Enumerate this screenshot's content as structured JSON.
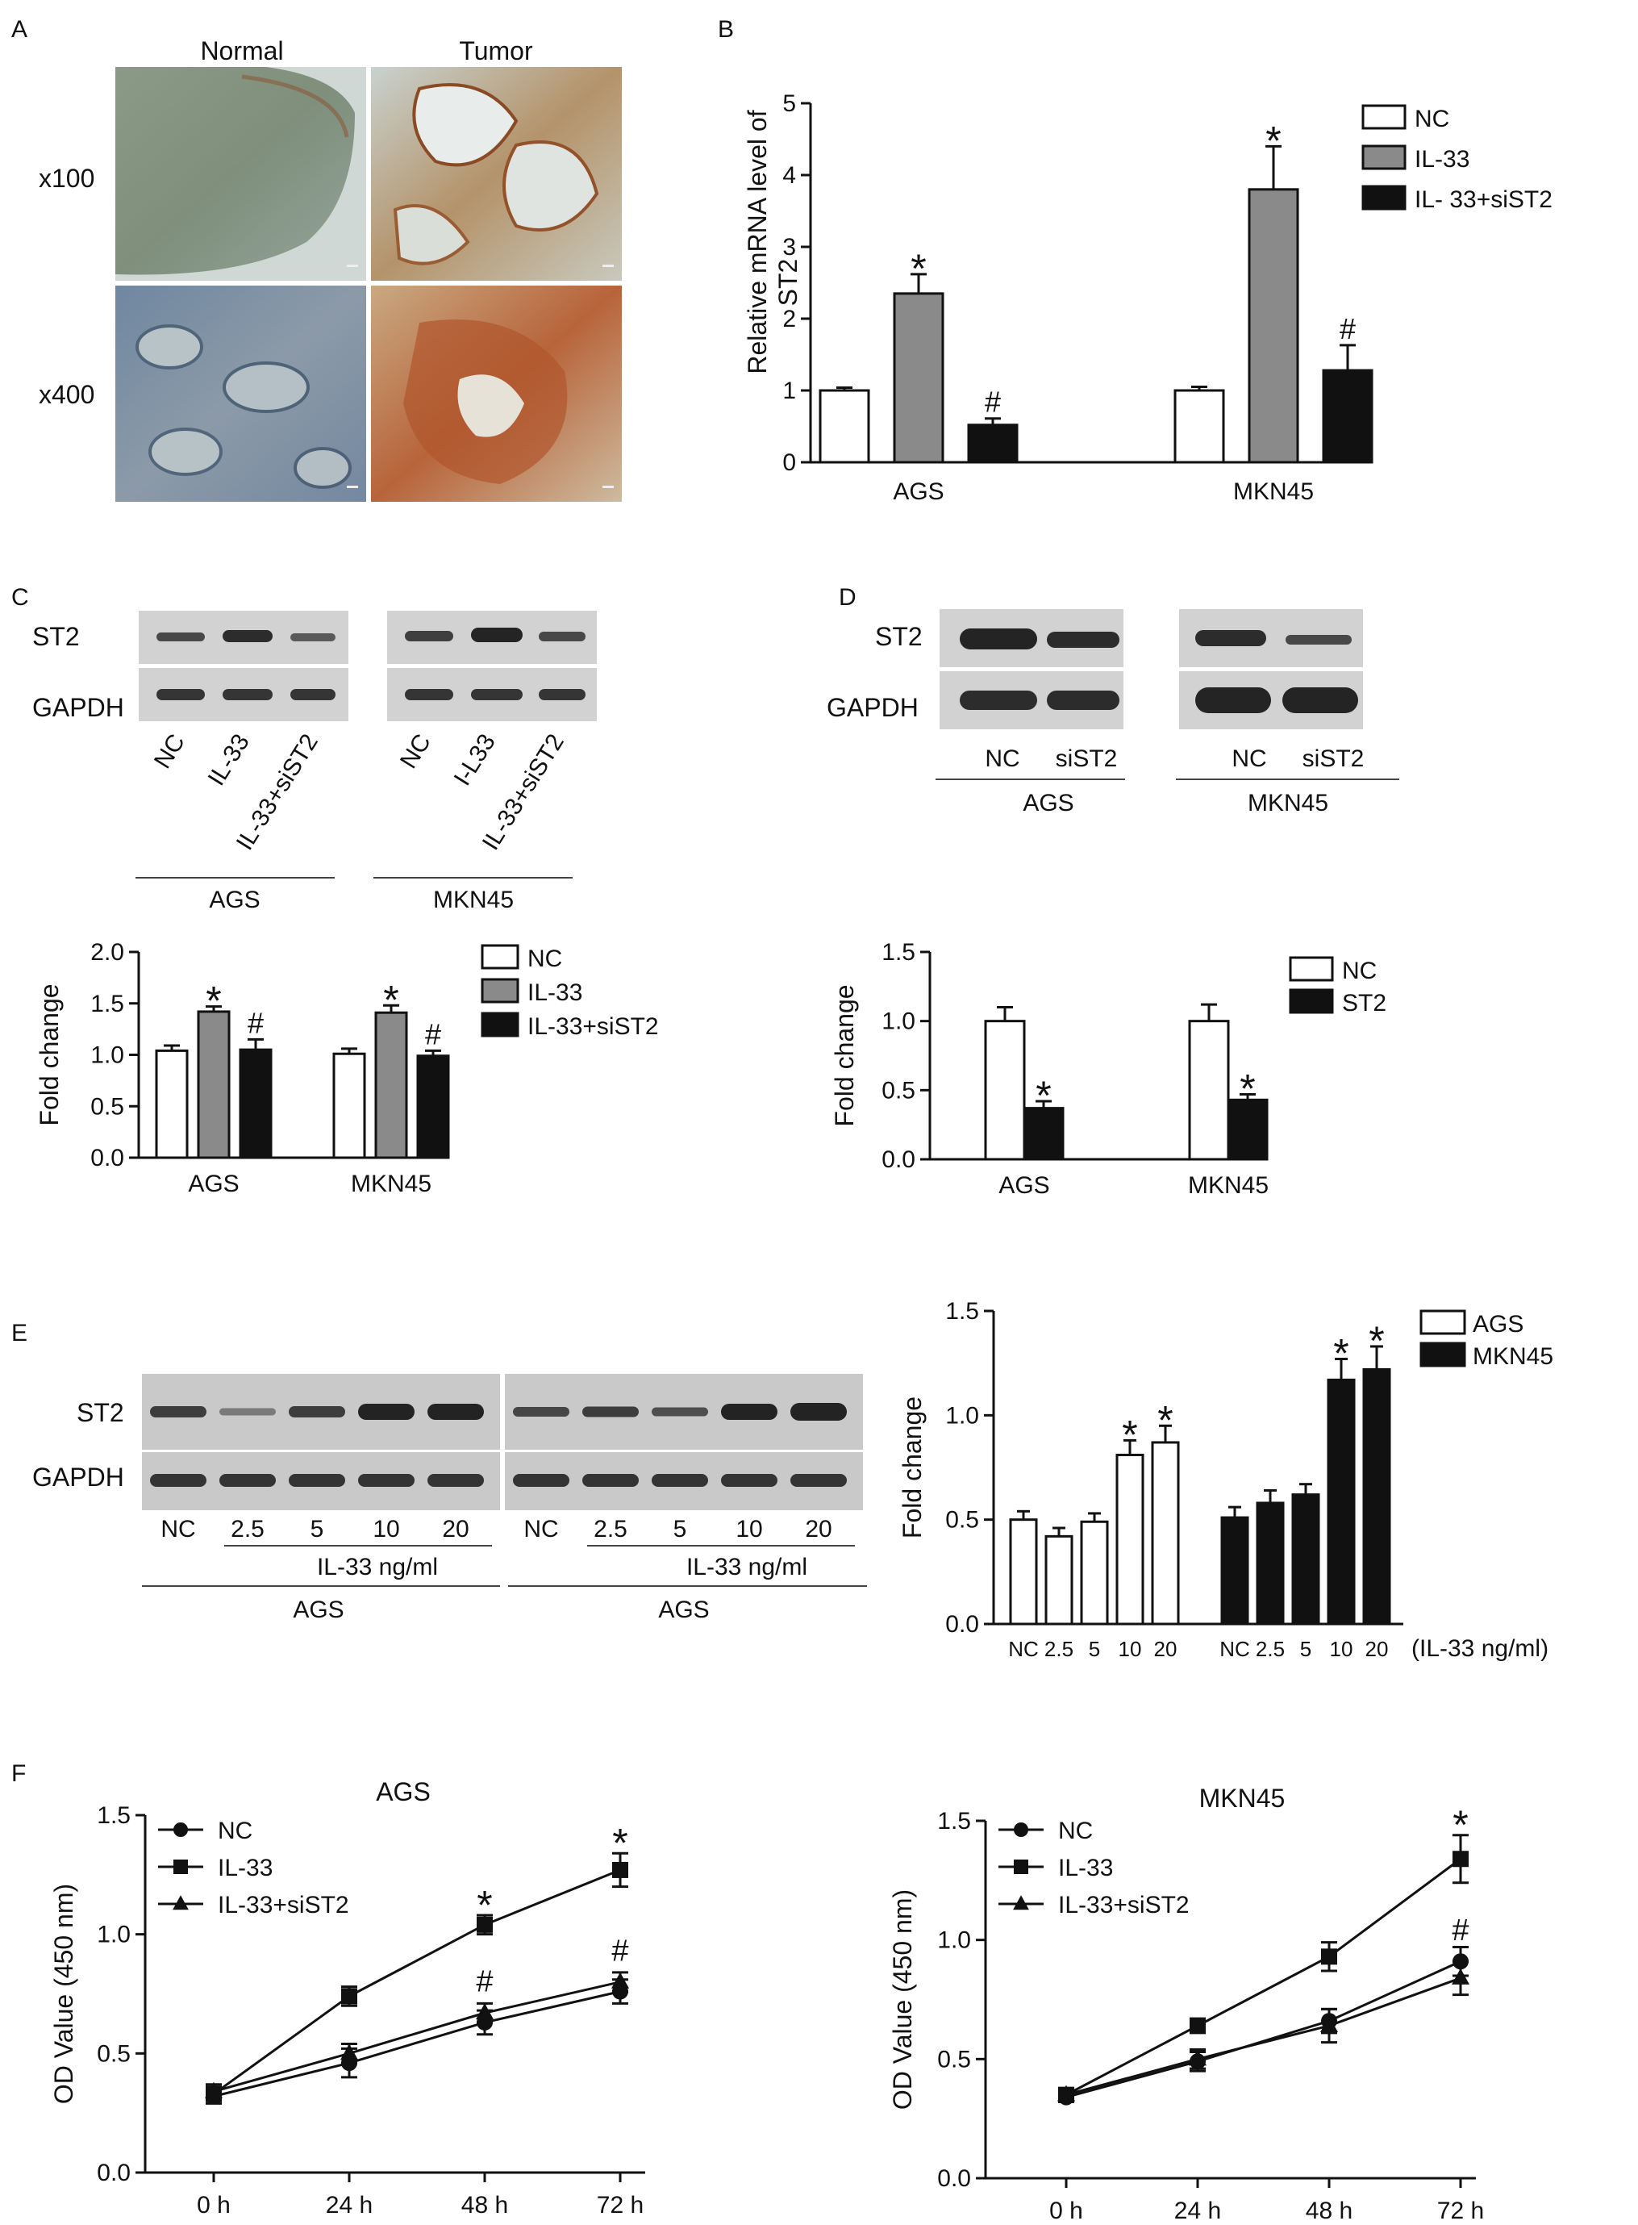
{
  "panels": {
    "A": {
      "letter": "A",
      "col_labels": [
        "Normal",
        "Tumor"
      ],
      "row_labels": [
        "x100",
        "x400"
      ]
    },
    "B": {
      "letter": "B"
    },
    "C": {
      "letter": "C",
      "blot_rows": [
        "ST2",
        "GAPDH"
      ],
      "lanes_left": [
        "NC",
        "IL-33",
        "IL-33+siST2"
      ],
      "lanes_right": [
        "NC",
        "I-L33",
        "IL-33+siST2"
      ],
      "groups": [
        "AGS",
        "MKN45"
      ]
    },
    "D": {
      "letter": "D",
      "blot_rows": [
        "ST2",
        "GAPDH"
      ],
      "lanes": [
        "NC",
        "siST2",
        "NC",
        "siST2"
      ],
      "groups": [
        "AGS",
        "MKN45"
      ]
    },
    "E": {
      "letter": "E",
      "blot_rows": [
        "ST2",
        "GAPDH"
      ],
      "lanes": [
        "NC",
        "2.5",
        "5",
        "10",
        "20",
        "NC",
        "2.5",
        "5",
        "10",
        "20"
      ],
      "treatment": [
        "IL-33 ng/ml",
        "IL-33 ng/ml"
      ],
      "groups": [
        "AGS",
        "AGS"
      ]
    },
    "F": {
      "letter": "F"
    }
  },
  "colors": {
    "white_bar": "#ffffff",
    "gray_bar": "#8a8a8a",
    "black_bar": "#111111",
    "axis": "#111111",
    "blot_bg": "#d4d4d4",
    "blot_band": "#1a1a1a"
  },
  "chart_data": [
    {
      "id": "B",
      "type": "bar",
      "ylabel": "Relative mRNA level of ST2",
      "ylim": [
        0,
        5
      ],
      "yticks": [
        "0",
        "1",
        "2",
        "3",
        "4",
        "5"
      ],
      "categories": [
        "AGS",
        "MKN45"
      ],
      "legend_position": "top-right",
      "series": [
        {
          "name": "NC",
          "values": [
            1.0,
            1.0
          ],
          "errors": [
            0.04,
            0.05
          ],
          "color": "white",
          "marks": [
            "",
            ""
          ]
        },
        {
          "name": "IL-33",
          "values": [
            2.35,
            3.8
          ],
          "errors": [
            0.27,
            0.6
          ],
          "color": "gray",
          "marks": [
            "*",
            "*"
          ]
        },
        {
          "name": "IL- 33+siST2",
          "values": [
            0.52,
            1.28
          ],
          "errors": [
            0.09,
            0.35
          ],
          "color": "black",
          "marks": [
            "#",
            "#"
          ]
        }
      ]
    },
    {
      "id": "C",
      "type": "bar",
      "ylabel": "Fold change",
      "ylim": [
        0,
        2.0
      ],
      "yticks": [
        "0.0",
        "0.5",
        "1.0",
        "1.5",
        "2.0"
      ],
      "categories": [
        "AGS",
        "MKN45"
      ],
      "legend_position": "top-right",
      "series": [
        {
          "name": "NC",
          "values": [
            1.04,
            1.01
          ],
          "errors": [
            0.05,
            0.05
          ],
          "color": "white",
          "marks": [
            "",
            ""
          ]
        },
        {
          "name": "IL-33",
          "values": [
            1.42,
            1.41
          ],
          "errors": [
            0.05,
            0.07
          ],
          "color": "gray",
          "marks": [
            "*",
            "*"
          ]
        },
        {
          "name": "IL-33+siST2",
          "values": [
            1.05,
            0.99
          ],
          "errors": [
            0.1,
            0.05
          ],
          "color": "black",
          "marks": [
            "#",
            "#"
          ]
        }
      ]
    },
    {
      "id": "D",
      "type": "bar",
      "ylabel": "Fold change",
      "ylim": [
        0,
        1.5
      ],
      "yticks": [
        "0.0",
        "0.5",
        "1.0",
        "1.5"
      ],
      "categories": [
        "AGS",
        "MKN45"
      ],
      "legend_position": "top-right",
      "series": [
        {
          "name": "NC",
          "values": [
            1.0,
            1.0
          ],
          "errors": [
            0.1,
            0.12
          ],
          "color": "white",
          "marks": [
            "",
            ""
          ]
        },
        {
          "name": "ST2",
          "values": [
            0.37,
            0.43
          ],
          "errors": [
            0.05,
            0.04
          ],
          "color": "black",
          "marks": [
            "*",
            "*"
          ]
        }
      ]
    },
    {
      "id": "E",
      "type": "bar",
      "ylabel": "Fold change",
      "ylim": [
        0,
        1.5
      ],
      "yticks": [
        "0.0",
        "0.5",
        "1.0",
        "1.5"
      ],
      "categories": [
        "NC",
        "2.5",
        "5",
        "10",
        "20"
      ],
      "xlabel": "(IL-33 ng/ml)",
      "legend_position": "top-right",
      "series": [
        {
          "name": "AGS",
          "values": [
            0.5,
            0.42,
            0.49,
            0.81,
            0.87
          ],
          "errors": [
            0.04,
            0.04,
            0.04,
            0.07,
            0.08
          ],
          "color": "white",
          "marks": [
            "",
            "",
            "",
            "*",
            "*"
          ]
        },
        {
          "name": "MKN45",
          "values": [
            0.51,
            0.58,
            0.62,
            1.17,
            1.22
          ],
          "errors": [
            0.05,
            0.06,
            0.05,
            0.1,
            0.11
          ],
          "color": "black",
          "marks": [
            "",
            "",
            "",
            "*",
            "*"
          ]
        }
      ]
    },
    {
      "id": "F1",
      "type": "line",
      "title": "AGS",
      "ylabel": "OD Value (450 nm)",
      "ylim": [
        0,
        1.5
      ],
      "yticks": [
        "0.0",
        "0.5",
        "1.0",
        "1.5"
      ],
      "x": [
        "0 h",
        "24 h",
        "48 h",
        "72 h"
      ],
      "legend_position": "top-left",
      "series": [
        {
          "name": "NC",
          "marker": "circle",
          "values": [
            0.32,
            0.46,
            0.63,
            0.76
          ],
          "errors": [
            0.03,
            0.06,
            0.05,
            0.05
          ]
        },
        {
          "name": "IL-33",
          "marker": "square",
          "values": [
            0.33,
            0.74,
            1.04,
            1.27
          ],
          "errors": [
            0.03,
            0.04,
            0.04,
            0.07
          ]
        },
        {
          "name": "IL-33+siST2",
          "marker": "triangle",
          "values": [
            0.34,
            0.5,
            0.67,
            0.8
          ],
          "errors": [
            0.03,
            0.04,
            0.04,
            0.04
          ]
        }
      ],
      "annotations": [
        {
          "x": "48 h",
          "y": 1.14,
          "text": "*"
        },
        {
          "x": "48 h",
          "y": 0.8,
          "text": "#"
        },
        {
          "x": "72 h",
          "y": 1.4,
          "text": "*"
        },
        {
          "x": "72 h",
          "y": 0.93,
          "text": "#"
        }
      ]
    },
    {
      "id": "F2",
      "type": "line",
      "title": "MKN45",
      "ylabel": "OD Value (450 nm)",
      "ylim": [
        0,
        1.5
      ],
      "yticks": [
        "0.0",
        "0.5",
        "1.0",
        "1.5"
      ],
      "x": [
        "0 h",
        "24 h",
        "48 h",
        "72 h"
      ],
      "legend_position": "top-left",
      "series": [
        {
          "name": "NC",
          "marker": "circle",
          "values": [
            0.34,
            0.49,
            0.66,
            0.91
          ],
          "errors": [
            0.02,
            0.04,
            0.05,
            0.06
          ]
        },
        {
          "name": "IL-33",
          "marker": "square",
          "values": [
            0.35,
            0.64,
            0.93,
            1.34
          ],
          "errors": [
            0.02,
            0.03,
            0.06,
            0.1
          ]
        },
        {
          "name": "IL-33+siST2",
          "marker": "triangle",
          "values": [
            0.35,
            0.5,
            0.64,
            0.84
          ],
          "errors": [
            0.02,
            0.04,
            0.07,
            0.07
          ]
        }
      ],
      "annotations": [
        {
          "x": "72 h",
          "y": 1.5,
          "text": "*"
        },
        {
          "x": "72 h",
          "y": 1.04,
          "text": "#"
        }
      ]
    }
  ]
}
